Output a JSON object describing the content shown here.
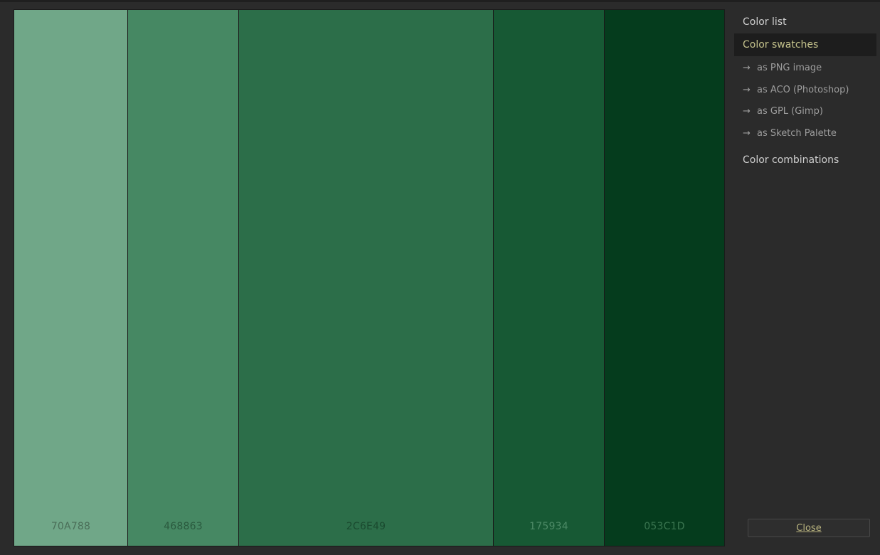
{
  "swatches": [
    {
      "hex": "70A788",
      "color": "#70A788",
      "label_color": "#4a6e58",
      "width_share": 160
    },
    {
      "hex": "468863",
      "color": "#468863",
      "label_color": "#2a5a3e",
      "width_share": 156
    },
    {
      "hex": "2C6E49",
      "color": "#2C6E49",
      "label_color": "#1a4a2f",
      "width_share": 358
    },
    {
      "hex": "175934",
      "color": "#175934",
      "label_color": "#4d8a66",
      "width_share": 156
    },
    {
      "hex": "053C1D",
      "color": "#053C1D",
      "label_color": "#3a7550",
      "width_share": 168
    }
  ],
  "sidebar": {
    "color_list": "Color list",
    "color_swatches": "Color swatches",
    "export_items": [
      {
        "arrow": "→",
        "label": "as PNG image"
      },
      {
        "arrow": "→",
        "label": "as ACO (Photoshop)"
      },
      {
        "arrow": "→",
        "label": "as GPL (Gimp)"
      },
      {
        "arrow": "→",
        "label": "as Sketch Palette"
      }
    ],
    "color_combinations": "Color combinations"
  },
  "close_label": "Close"
}
